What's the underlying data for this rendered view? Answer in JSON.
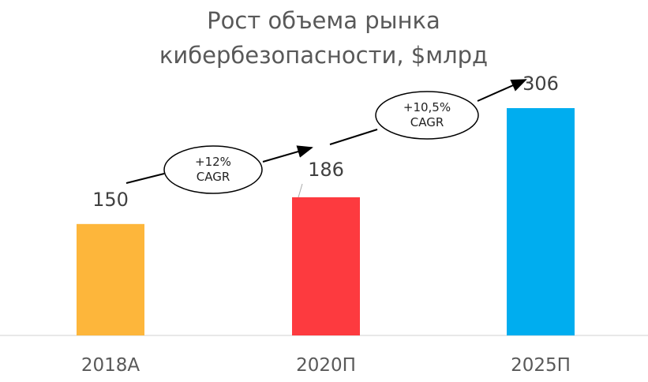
{
  "chart_data": {
    "type": "bar",
    "title": "Рост объема рынка кибербезопасности, $млрд",
    "categories": [
      "2018А",
      "2020П",
      "2025П"
    ],
    "values": [
      150,
      186,
      306
    ],
    "colors": [
      "#fdb63b",
      "#fd3a3f",
      "#00adef"
    ],
    "annotations": [
      "+12%\nCAGR",
      "+10,5%\nCAGR"
    ]
  }
}
